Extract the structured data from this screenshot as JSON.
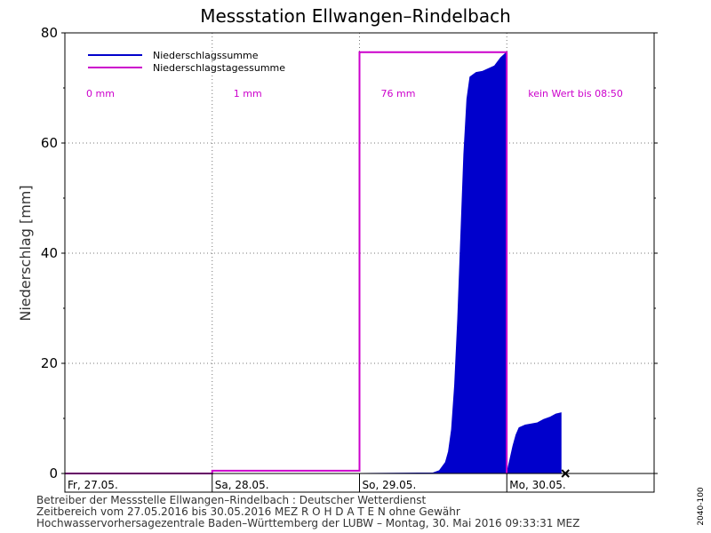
{
  "chart_data": {
    "type": "area",
    "title": "Messstation Ellwangen–Rindelbach",
    "ylabel": "Niederschlag [mm]",
    "xlabel": "",
    "ylim": [
      0,
      80
    ],
    "yticks": [
      0,
      20,
      40,
      60,
      80
    ],
    "grid": true,
    "legend_position": "top-left",
    "x_range": [
      "2016-05-27T00:00",
      "2016-05-31T00:00"
    ],
    "days": [
      {
        "label": "Fr, 27.05.",
        "start": "2016-05-27T00:00",
        "total_label": "0 mm",
        "total": 0.0
      },
      {
        "label": "Sa, 28.05.",
        "start": "2016-05-28T00:00",
        "total_label": "1 mm",
        "total": 0.5
      },
      {
        "label": "So, 29.05.",
        "start": "2016-05-29T00:00",
        "total_label": "76 mm",
        "total": 76.5
      },
      {
        "label": "Mo, 30.05.",
        "start": "2016-05-30T00:00",
        "total_label": "kein Wert bis 08:50",
        "total": null
      }
    ],
    "series": [
      {
        "name": "Niederschlagssumme",
        "color": "#0000cc",
        "style": "filled-area",
        "points": [
          [
            "2016-05-29T00:00",
            0.0
          ],
          [
            "2016-05-29T12:00",
            0.1
          ],
          [
            "2016-05-29T13:00",
            0.5
          ],
          [
            "2016-05-29T14:00",
            2.0
          ],
          [
            "2016-05-29T14:30",
            4.0
          ],
          [
            "2016-05-29T15:00",
            8.0
          ],
          [
            "2016-05-29T15:30",
            16.0
          ],
          [
            "2016-05-29T16:00",
            28.0
          ],
          [
            "2016-05-29T16:30",
            43.0
          ],
          [
            "2016-05-29T17:00",
            58.0
          ],
          [
            "2016-05-29T17:30",
            68.0
          ],
          [
            "2016-05-29T18:00",
            72.0
          ],
          [
            "2016-05-29T19:00",
            72.8
          ],
          [
            "2016-05-29T20:00",
            73.0
          ],
          [
            "2016-05-29T21:00",
            73.5
          ],
          [
            "2016-05-29T22:00",
            74.0
          ],
          [
            "2016-05-29T23:00",
            75.5
          ],
          [
            "2016-05-29T23:59",
            76.5
          ],
          [
            "2016-05-30T00:00",
            0.0
          ],
          [
            "2016-05-30T00:30",
            2.5
          ],
          [
            "2016-05-30T01:00",
            5.0
          ],
          [
            "2016-05-30T01:30",
            7.0
          ],
          [
            "2016-05-30T02:00",
            8.3
          ],
          [
            "2016-05-30T03:00",
            8.8
          ],
          [
            "2016-05-30T04:00",
            9.0
          ],
          [
            "2016-05-30T05:00",
            9.2
          ],
          [
            "2016-05-30T06:00",
            9.8
          ],
          [
            "2016-05-30T07:00",
            10.2
          ],
          [
            "2016-05-30T08:00",
            10.8
          ],
          [
            "2016-05-30T08:50",
            11.0
          ]
        ]
      },
      {
        "name": "Niederschlagstagessumme",
        "color": "#cc00cc",
        "style": "step",
        "points": [
          [
            "2016-05-27T00:00",
            0.0
          ],
          [
            "2016-05-28T00:00",
            0.5
          ],
          [
            "2016-05-29T00:00",
            76.5
          ],
          [
            "2016-05-29T23:59",
            76.5
          ]
        ]
      }
    ],
    "marker": {
      "symbol": "x",
      "at": [
        "2016-05-30T09:33",
        0
      ]
    },
    "footer": [
      "Betreiber der Messstelle Ellwangen–Rindelbach : Deutscher Wetterdienst",
      "Zeitbereich vom 27.05.2016 bis 30.05.2016    MEZ    R O H D A T E N ohne Gewähr",
      "Hochwasservorhersagezentrale Baden–Württemberg der LUBW – Montag, 30. Mai 2016 09:33:31 MEZ"
    ],
    "side_label": "2040-100"
  }
}
